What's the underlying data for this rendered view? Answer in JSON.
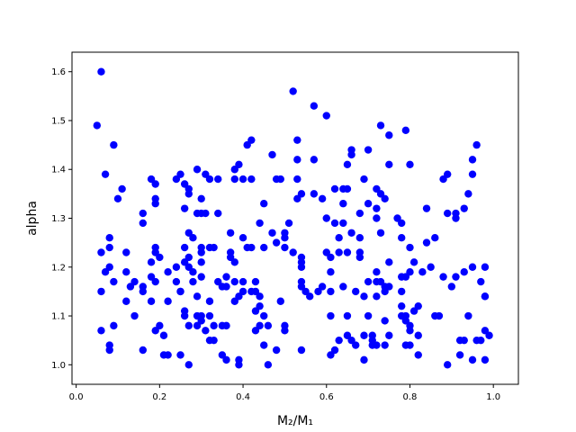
{
  "chart_data": {
    "type": "scatter",
    "xlabel": "M₂/M₁",
    "ylabel": "alpha",
    "xlim": [
      -0.01,
      1.06
    ],
    "ylim": [
      0.96,
      1.64
    ],
    "x_ticks": [
      0.0,
      0.2,
      0.4,
      0.6,
      0.8,
      1.0
    ],
    "x_tick_labels": [
      "0.0",
      "0.2",
      "0.4",
      "0.6",
      "0.8",
      "1.0"
    ],
    "y_ticks": [
      1.0,
      1.1,
      1.2,
      1.3,
      1.4,
      1.5,
      1.6
    ],
    "y_tick_labels": [
      "1.0",
      "1.1",
      "1.2",
      "1.3",
      "1.4",
      "1.5",
      "1.6"
    ],
    "grid": false,
    "marker_color": "#0000ff",
    "points": [
      [
        0.06,
        1.6
      ],
      [
        0.05,
        1.49
      ],
      [
        0.09,
        1.45
      ],
      [
        0.07,
        1.39
      ],
      [
        0.11,
        1.36
      ],
      [
        0.1,
        1.34
      ],
      [
        0.08,
        1.26
      ],
      [
        0.08,
        1.24
      ],
      [
        0.06,
        1.23
      ],
      [
        0.08,
        1.2
      ],
      [
        0.07,
        1.19
      ],
      [
        0.09,
        1.17
      ],
      [
        0.06,
        1.15
      ],
      [
        0.09,
        1.08
      ],
      [
        0.06,
        1.07
      ],
      [
        0.08,
        1.04
      ],
      [
        0.08,
        1.03
      ],
      [
        0.12,
        1.23
      ],
      [
        0.12,
        1.19
      ],
      [
        0.14,
        1.17
      ],
      [
        0.13,
        1.16
      ],
      [
        0.12,
        1.13
      ],
      [
        0.14,
        1.1
      ],
      [
        0.16,
        1.03
      ],
      [
        0.16,
        1.15
      ],
      [
        0.16,
        1.16
      ],
      [
        0.16,
        1.29
      ],
      [
        0.16,
        1.31
      ],
      [
        0.18,
        1.38
      ],
      [
        0.19,
        1.37
      ],
      [
        0.19,
        1.34
      ],
      [
        0.19,
        1.33
      ],
      [
        0.19,
        1.24
      ],
      [
        0.19,
        1.23
      ],
      [
        0.2,
        1.22
      ],
      [
        0.18,
        1.21
      ],
      [
        0.18,
        1.18
      ],
      [
        0.19,
        1.17
      ],
      [
        0.18,
        1.13
      ],
      [
        0.2,
        1.08
      ],
      [
        0.19,
        1.07
      ],
      [
        0.21,
        1.02
      ],
      [
        0.22,
        1.02
      ],
      [
        0.21,
        1.06
      ],
      [
        0.22,
        1.13
      ],
      [
        0.22,
        1.19
      ],
      [
        0.25,
        1.39
      ],
      [
        0.24,
        1.38
      ],
      [
        0.26,
        1.37
      ],
      [
        0.27,
        1.36
      ],
      [
        0.27,
        1.35
      ],
      [
        0.26,
        1.32
      ],
      [
        0.24,
        1.2
      ],
      [
        0.24,
        1.17
      ],
      [
        0.25,
        1.15
      ],
      [
        0.25,
        1.15
      ],
      [
        0.26,
        1.24
      ],
      [
        0.26,
        1.21
      ],
      [
        0.27,
        1.27
      ],
      [
        0.28,
        1.26
      ],
      [
        0.27,
        1.22
      ],
      [
        0.27,
        1.2
      ],
      [
        0.26,
        1.11
      ],
      [
        0.26,
        1.1
      ],
      [
        0.27,
        1.08
      ],
      [
        0.25,
        1.02
      ],
      [
        0.27,
        1.0
      ],
      [
        0.28,
        1.19
      ],
      [
        0.28,
        1.17
      ],
      [
        0.29,
        1.14
      ],
      [
        0.29,
        1.1
      ],
      [
        0.29,
        1.08
      ],
      [
        0.3,
        1.09
      ],
      [
        0.3,
        1.1
      ],
      [
        0.29,
        1.31
      ],
      [
        0.3,
        1.31
      ],
      [
        0.3,
        1.34
      ],
      [
        0.29,
        1.4
      ],
      [
        0.31,
        1.39
      ],
      [
        0.31,
        1.31
      ],
      [
        0.32,
        1.38
      ],
      [
        0.32,
        1.24
      ],
      [
        0.3,
        1.24
      ],
      [
        0.3,
        1.23
      ],
      [
        0.3,
        1.21
      ],
      [
        0.3,
        1.18
      ],
      [
        0.32,
        1.13
      ],
      [
        0.32,
        1.1
      ],
      [
        0.31,
        1.07
      ],
      [
        0.32,
        1.05
      ],
      [
        0.33,
        1.05
      ],
      [
        0.33,
        1.08
      ],
      [
        0.33,
        1.24
      ],
      [
        0.34,
        1.31
      ],
      [
        0.34,
        1.38
      ],
      [
        0.34,
        1.17
      ],
      [
        0.35,
        1.16
      ],
      [
        0.35,
        1.08
      ],
      [
        0.36,
        1.08
      ],
      [
        0.35,
        1.02
      ],
      [
        0.36,
        1.01
      ],
      [
        0.36,
        1.16
      ],
      [
        0.36,
        1.18
      ],
      [
        0.37,
        1.22
      ],
      [
        0.37,
        1.23
      ],
      [
        0.37,
        1.27
      ],
      [
        0.38,
        1.38
      ],
      [
        0.38,
        1.4
      ],
      [
        0.39,
        1.41
      ],
      [
        0.4,
        1.38
      ],
      [
        0.4,
        1.26
      ],
      [
        0.38,
        1.21
      ],
      [
        0.38,
        1.17
      ],
      [
        0.38,
        1.13
      ],
      [
        0.39,
        1.14
      ],
      [
        0.39,
        1.01
      ],
      [
        0.39,
        1.0
      ],
      [
        0.4,
        1.15
      ],
      [
        0.4,
        1.17
      ],
      [
        0.41,
        1.45
      ],
      [
        0.42,
        1.46
      ],
      [
        0.42,
        1.38
      ],
      [
        0.42,
        1.24
      ],
      [
        0.41,
        1.24
      ],
      [
        0.42,
        1.15
      ],
      [
        0.43,
        1.17
      ],
      [
        0.43,
        1.15
      ],
      [
        0.44,
        1.14
      ],
      [
        0.44,
        1.12
      ],
      [
        0.43,
        1.11
      ],
      [
        0.44,
        1.08
      ],
      [
        0.43,
        1.07
      ],
      [
        0.45,
        1.1
      ],
      [
        0.45,
        1.04
      ],
      [
        0.44,
        1.29
      ],
      [
        0.45,
        1.33
      ],
      [
        0.45,
        1.24
      ],
      [
        0.46,
        1.0
      ],
      [
        0.46,
        1.08
      ],
      [
        0.47,
        1.43
      ],
      [
        0.48,
        1.38
      ],
      [
        0.47,
        1.27
      ],
      [
        0.48,
        1.25
      ],
      [
        0.48,
        1.03
      ],
      [
        0.49,
        1.13
      ],
      [
        0.49,
        1.38
      ],
      [
        0.5,
        1.27
      ],
      [
        0.5,
        1.26
      ],
      [
        0.5,
        1.24
      ],
      [
        0.5,
        1.08
      ],
      [
        0.5,
        1.07
      ],
      [
        0.51,
        1.29
      ],
      [
        0.52,
        1.56
      ],
      [
        0.52,
        1.23
      ],
      [
        0.53,
        1.46
      ],
      [
        0.53,
        1.42
      ],
      [
        0.53,
        1.38
      ],
      [
        0.53,
        1.34
      ],
      [
        0.54,
        1.35
      ],
      [
        0.54,
        1.22
      ],
      [
        0.54,
        1.21
      ],
      [
        0.54,
        1.2
      ],
      [
        0.54,
        1.17
      ],
      [
        0.54,
        1.16
      ],
      [
        0.55,
        1.15
      ],
      [
        0.54,
        1.03
      ],
      [
        0.56,
        1.14
      ],
      [
        0.57,
        1.42
      ],
      [
        0.57,
        1.53
      ],
      [
        0.57,
        1.35
      ],
      [
        0.58,
        1.15
      ],
      [
        0.6,
        1.51
      ],
      [
        0.59,
        1.34
      ],
      [
        0.59,
        1.16
      ],
      [
        0.6,
        1.3
      ],
      [
        0.6,
        1.23
      ],
      [
        0.61,
        1.22
      ],
      [
        0.61,
        1.19
      ],
      [
        0.61,
        1.15
      ],
      [
        0.61,
        1.1
      ],
      [
        0.61,
        1.02
      ],
      [
        0.62,
        1.36
      ],
      [
        0.62,
        1.29
      ],
      [
        0.62,
        1.03
      ],
      [
        0.63,
        1.23
      ],
      [
        0.63,
        1.05
      ],
      [
        0.63,
        1.26
      ],
      [
        0.64,
        1.36
      ],
      [
        0.64,
        1.33
      ],
      [
        0.64,
        1.29
      ],
      [
        0.65,
        1.41
      ],
      [
        0.65,
        1.36
      ],
      [
        0.65,
        1.23
      ],
      [
        0.64,
        1.16
      ],
      [
        0.65,
        1.1
      ],
      [
        0.65,
        1.06
      ],
      [
        0.66,
        1.43
      ],
      [
        0.66,
        1.44
      ],
      [
        0.66,
        1.27
      ],
      [
        0.66,
        1.05
      ],
      [
        0.67,
        1.04
      ],
      [
        0.67,
        1.15
      ],
      [
        0.68,
        1.31
      ],
      [
        0.68,
        1.26
      ],
      [
        0.68,
        1.23
      ],
      [
        0.68,
        1.22
      ],
      [
        0.69,
        1.38
      ],
      [
        0.69,
        1.06
      ],
      [
        0.7,
        1.44
      ],
      [
        0.69,
        1.14
      ],
      [
        0.69,
        1.01
      ],
      [
        0.7,
        1.1
      ],
      [
        0.7,
        1.33
      ],
      [
        0.7,
        1.17
      ],
      [
        0.71,
        1.06
      ],
      [
        0.71,
        1.04
      ],
      [
        0.71,
        1.05
      ],
      [
        0.72,
        1.32
      ],
      [
        0.72,
        1.3
      ],
      [
        0.72,
        1.36
      ],
      [
        0.73,
        1.35
      ],
      [
        0.72,
        1.19
      ],
      [
        0.72,
        1.17
      ],
      [
        0.72,
        1.14
      ],
      [
        0.72,
        1.04
      ],
      [
        0.73,
        1.49
      ],
      [
        0.74,
        1.34
      ],
      [
        0.73,
        1.27
      ],
      [
        0.73,
        1.17
      ],
      [
        0.74,
        1.16
      ],
      [
        0.74,
        1.15
      ],
      [
        0.74,
        1.09
      ],
      [
        0.74,
        1.04
      ],
      [
        0.75,
        1.47
      ],
      [
        0.75,
        1.41
      ],
      [
        0.75,
        1.21
      ],
      [
        0.75,
        1.16
      ],
      [
        0.75,
        1.06
      ],
      [
        0.77,
        1.3
      ],
      [
        0.78,
        1.29
      ],
      [
        0.78,
        1.26
      ],
      [
        0.78,
        1.18
      ],
      [
        0.78,
        1.15
      ],
      [
        0.78,
        1.12
      ],
      [
        0.78,
        1.1
      ],
      [
        0.79,
        1.48
      ],
      [
        0.79,
        1.18
      ],
      [
        0.79,
        1.1
      ],
      [
        0.79,
        1.09
      ],
      [
        0.79,
        1.04
      ],
      [
        0.8,
        1.41
      ],
      [
        0.8,
        1.24
      ],
      [
        0.8,
        1.19
      ],
      [
        0.8,
        1.08
      ],
      [
        0.8,
        1.07
      ],
      [
        0.8,
        1.04
      ],
      [
        0.81,
        1.21
      ],
      [
        0.81,
        1.11
      ],
      [
        0.82,
        1.02
      ],
      [
        0.82,
        1.06
      ],
      [
        0.82,
        1.12
      ],
      [
        0.83,
        1.19
      ],
      [
        0.84,
        1.32
      ],
      [
        0.84,
        1.25
      ],
      [
        0.85,
        1.2
      ],
      [
        0.86,
        1.26
      ],
      [
        0.86,
        1.1
      ],
      [
        0.87,
        1.1
      ],
      [
        0.88,
        1.38
      ],
      [
        0.88,
        1.18
      ],
      [
        0.89,
        1.39
      ],
      [
        0.89,
        1.31
      ],
      [
        0.89,
        1.0
      ],
      [
        0.9,
        1.16
      ],
      [
        0.91,
        1.18
      ],
      [
        0.91,
        1.3
      ],
      [
        0.91,
        1.31
      ],
      [
        0.92,
        1.05
      ],
      [
        0.92,
        1.02
      ],
      [
        0.93,
        1.32
      ],
      [
        0.93,
        1.19
      ],
      [
        0.93,
        1.05
      ],
      [
        0.94,
        1.35
      ],
      [
        0.94,
        1.1
      ],
      [
        0.95,
        1.42
      ],
      [
        0.95,
        1.39
      ],
      [
        0.95,
        1.2
      ],
      [
        0.96,
        1.45
      ],
      [
        0.96,
        1.05
      ],
      [
        0.95,
        1.01
      ],
      [
        0.97,
        1.05
      ],
      [
        0.97,
        1.17
      ],
      [
        0.98,
        1.14
      ],
      [
        0.98,
        1.14
      ],
      [
        0.98,
        1.2
      ],
      [
        0.98,
        1.07
      ],
      [
        0.98,
        1.01
      ],
      [
        0.99,
        1.06
      ]
    ]
  }
}
